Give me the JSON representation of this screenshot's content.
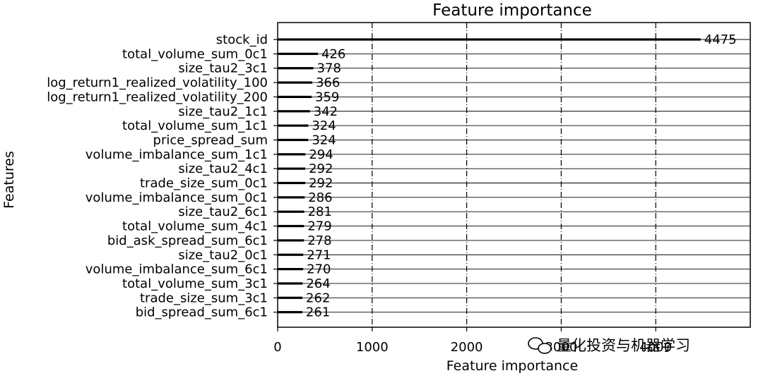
{
  "chart_data": {
    "type": "bar",
    "orientation": "horizontal",
    "title": "Feature importance",
    "xlabel": "Feature importance",
    "ylabel": "Features",
    "xlim": [
      0,
      5000
    ],
    "xticks": [
      0,
      1000,
      2000,
      3000,
      4000
    ],
    "xtick_labels": [
      "0",
      "1000",
      "2000",
      "3000",
      "4000"
    ],
    "grid": true,
    "categories": [
      "stock_id",
      "total_volume_sum_0c1",
      "size_tau2_3c1",
      "log_return1_realized_volatility_100",
      "log_return1_realized_volatility_200",
      "size_tau2_1c1",
      "total_volume_sum_1c1",
      "price_spread_sum",
      "volume_imbalance_sum_1c1",
      "size_tau2_4c1",
      "trade_size_sum_0c1",
      "volume_imbalance_sum_0c1",
      "size_tau2_6c1",
      "total_volume_sum_4c1",
      "bid_ask_spread_sum_6c1",
      "size_tau2_0c1",
      "volume_imbalance_sum_6c1",
      "total_volume_sum_3c1",
      "trade_size_sum_3c1",
      "bid_spread_sum_6c1"
    ],
    "values": [
      4475,
      426,
      378,
      366,
      359,
      342,
      324,
      324,
      294,
      292,
      292,
      286,
      281,
      279,
      278,
      271,
      270,
      264,
      262,
      261
    ]
  },
  "watermark": "量化投资与机器学习",
  "colors": {
    "bar": "#000000",
    "grid": "#000000",
    "background": "#ffffff"
  }
}
